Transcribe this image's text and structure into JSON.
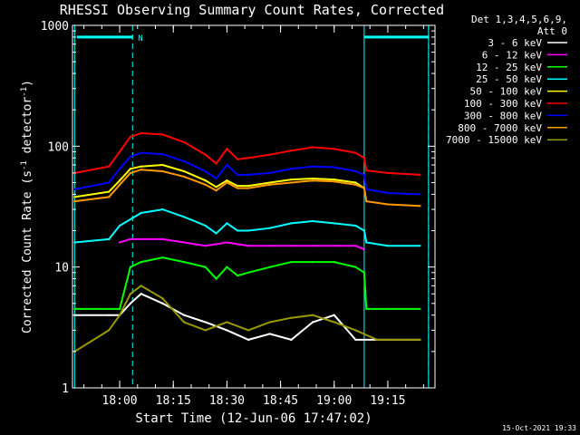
{
  "chart_data": {
    "type": "line",
    "title": "RHESSI Observing Summary Count Rates, Corrected",
    "xlabel": "Start Time (12-Jun-06 17:47:02)",
    "ylabel_main": "Corrected Count Rate (s",
    "ylabel_sup1": "-1",
    "ylabel_mid": " detector",
    "ylabel_sup2": "-1",
    "ylabel_end": ")",
    "yscale": "log",
    "ylim": [
      1,
      1000
    ],
    "xlim": [
      17.78,
      19.47
    ],
    "x_ticks": [
      18.0,
      18.25,
      18.5,
      18.75,
      19.0,
      19.25
    ],
    "x_tick_labels": [
      "18:00",
      "18:15",
      "18:30",
      "18:45",
      "19:00",
      "19:15"
    ],
    "y_tick_labels": [
      {
        "v": 1,
        "label": "1"
      },
      {
        "v": 10,
        "label": "10"
      },
      {
        "v": 100,
        "label": "100"
      },
      {
        "v": 1000,
        "label": "1000"
      }
    ],
    "legend_header": [
      "Det 1,3,4,5,6,9,",
      "Att 0"
    ],
    "legend_position": "right",
    "series": [
      {
        "name": "3 - 6 keV",
        "color": "#ffffff",
        "x": [
          17.79,
          17.95,
          18.0,
          18.05,
          18.1,
          18.2,
          18.3,
          18.4,
          18.5,
          18.6,
          18.7,
          18.8,
          18.9,
          19.0,
          19.1,
          19.2,
          19.3,
          19.4
        ],
        "values": [
          4.0,
          4.0,
          4.0,
          5.0,
          6.0,
          5.0,
          4.0,
          3.5,
          3.0,
          2.5,
          2.8,
          2.5,
          3.5,
          4.0,
          2.5,
          2.5,
          2.5,
          2.5
        ]
      },
      {
        "name": "6 - 12 keV",
        "color": "#ff00ff",
        "x": [
          18.0,
          18.05,
          18.1,
          18.2,
          18.3,
          18.4,
          18.5,
          18.6,
          18.7,
          18.8,
          18.9,
          19.0,
          19.1,
          19.14
        ],
        "values": [
          16,
          17,
          17,
          17,
          16,
          15,
          16,
          15,
          15,
          15,
          15,
          15,
          15,
          14
        ]
      },
      {
        "name": "12 - 25 keV",
        "color": "#00ff00",
        "x": [
          17.79,
          17.95,
          18.0,
          18.05,
          18.1,
          18.2,
          18.3,
          18.4,
          18.45,
          18.5,
          18.55,
          18.6,
          18.7,
          18.8,
          18.9,
          19.0,
          19.1,
          19.14,
          19.15,
          19.25,
          19.4
        ],
        "values": [
          4.5,
          4.5,
          4.5,
          10,
          11,
          12,
          11,
          10,
          8,
          10,
          8.5,
          9,
          10,
          11,
          11,
          11,
          10,
          9,
          4.5,
          4.5,
          4.5
        ]
      },
      {
        "name": "25 - 50 keV",
        "color": "#00ffff",
        "x": [
          17.79,
          17.95,
          18.0,
          18.1,
          18.2,
          18.3,
          18.4,
          18.45,
          18.5,
          18.55,
          18.6,
          18.7,
          18.8,
          18.9,
          19.0,
          19.1,
          19.14,
          19.15,
          19.25,
          19.4
        ],
        "values": [
          16,
          17,
          22,
          28,
          30,
          26,
          22,
          19,
          23,
          20,
          20,
          21,
          23,
          24,
          23,
          22,
          20,
          16,
          15,
          15
        ]
      },
      {
        "name": "50 - 100 keV",
        "color": "#ffff00",
        "x": [
          17.79,
          17.95,
          18.0,
          18.05,
          18.1,
          18.2,
          18.3,
          18.4,
          18.45,
          18.5,
          18.55,
          18.6,
          18.7,
          18.8,
          18.9,
          19.0,
          19.1,
          19.14
        ],
        "values": [
          38,
          42,
          52,
          65,
          68,
          70,
          62,
          52,
          46,
          52,
          47,
          47,
          50,
          53,
          54,
          53,
          50,
          45
        ]
      },
      {
        "name": "100 - 300 keV",
        "color": "#ff0000",
        "x": [
          17.79,
          17.95,
          18.0,
          18.05,
          18.1,
          18.2,
          18.3,
          18.4,
          18.45,
          18.5,
          18.55,
          18.6,
          18.7,
          18.8,
          18.9,
          19.0,
          19.1,
          19.14,
          19.15,
          19.25,
          19.4
        ],
        "values": [
          60,
          68,
          90,
          120,
          128,
          125,
          108,
          85,
          72,
          95,
          78,
          80,
          85,
          92,
          98,
          95,
          88,
          80,
          63,
          60,
          58
        ]
      },
      {
        "name": "300 - 800 keV",
        "color": "#0000ff",
        "x": [
          17.79,
          17.95,
          18.0,
          18.05,
          18.1,
          18.2,
          18.3,
          18.4,
          18.45,
          18.5,
          18.55,
          18.6,
          18.7,
          18.8,
          18.9,
          19.0,
          19.1,
          19.14,
          19.15,
          19.25,
          19.4
        ],
        "values": [
          44,
          50,
          65,
          82,
          88,
          86,
          75,
          62,
          54,
          70,
          58,
          58,
          60,
          65,
          68,
          67,
          62,
          58,
          44,
          41,
          40
        ]
      },
      {
        "name": "800 - 7000 keV",
        "color": "#ff9900",
        "x": [
          17.79,
          17.95,
          18.0,
          18.05,
          18.1,
          18.2,
          18.3,
          18.4,
          18.45,
          18.5,
          18.55,
          18.6,
          18.7,
          18.8,
          18.9,
          19.0,
          19.1,
          19.14,
          19.15,
          19.25,
          19.4
        ],
        "values": [
          35,
          38,
          48,
          60,
          64,
          62,
          56,
          48,
          43,
          50,
          45,
          45,
          48,
          50,
          52,
          51,
          48,
          45,
          35,
          33,
          32
        ]
      },
      {
        "name": "7000 - 15000 keV",
        "color": "#999900",
        "x": [
          17.79,
          17.95,
          18.0,
          18.05,
          18.1,
          18.2,
          18.3,
          18.4,
          18.5,
          18.6,
          18.7,
          18.8,
          18.9,
          19.0,
          19.1,
          19.2,
          19.3,
          19.4
        ],
        "values": [
          2.0,
          3.0,
          4.0,
          6.0,
          7.0,
          5.5,
          3.5,
          3.0,
          3.5,
          3.0,
          3.5,
          3.8,
          4.0,
          3.5,
          3.0,
          2.5,
          2.5,
          2.5
        ]
      }
    ],
    "attenuator_bars": [
      {
        "x_start": 17.8,
        "x_end": 18.06,
        "value": 800,
        "label": "N"
      },
      {
        "x_start": 19.14,
        "x_end": 19.44,
        "value": 800,
        "label": ""
      }
    ],
    "vertical_solid_lines": [
      17.79,
      19.14,
      19.44
    ],
    "vertical_dashed_lines": [
      18.06,
      19.44
    ],
    "timestamp": "15-Oct-2021 19:33"
  }
}
